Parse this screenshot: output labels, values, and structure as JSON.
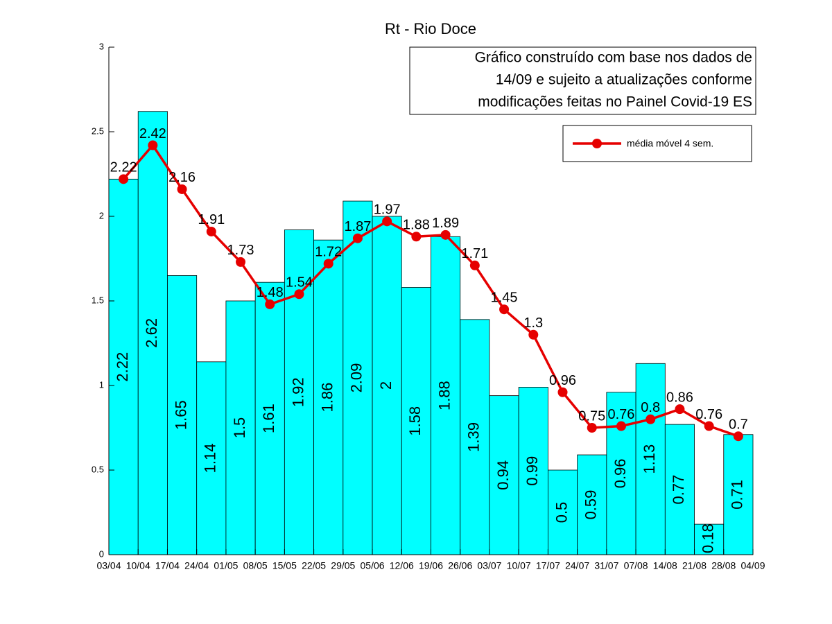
{
  "chart_data": {
    "type": "bar_line",
    "title": "Rt - Rio Doce",
    "annotation": [
      "Gráfico construído com base nos dados de",
      "14/09 e sujeito a atualizações conforme",
      "modificações feitas no Painel Covid-19 ES"
    ],
    "xlim": [
      0,
      22
    ],
    "xticks": [
      {
        "value": 0,
        "label": "03/04"
      },
      {
        "value": 1,
        "label": "10/04"
      },
      {
        "value": 2,
        "label": "17/04"
      },
      {
        "value": 3,
        "label": "24/04"
      },
      {
        "value": 4,
        "label": "01/05"
      },
      {
        "value": 5,
        "label": "08/05"
      },
      {
        "value": 6,
        "label": "15/05"
      },
      {
        "value": 7,
        "label": "22/05"
      },
      {
        "value": 8,
        "label": "29/05"
      },
      {
        "value": 9,
        "label": "05/06"
      },
      {
        "value": 10,
        "label": "12/06"
      },
      {
        "value": 11,
        "label": "19/06"
      },
      {
        "value": 12,
        "label": "26/06"
      },
      {
        "value": 13,
        "label": "03/07"
      },
      {
        "value": 14,
        "label": "10/07"
      },
      {
        "value": 15,
        "label": "17/07"
      },
      {
        "value": 16,
        "label": "24/07"
      },
      {
        "value": 17,
        "label": "31/07"
      },
      {
        "value": 18,
        "label": "07/08"
      },
      {
        "value": 19,
        "label": "14/08"
      },
      {
        "value": 20,
        "label": "21/08"
      },
      {
        "value": 21,
        "label": "28/08"
      },
      {
        "value": 22,
        "label": "04/09"
      }
    ],
    "ylim": [
      0,
      3
    ],
    "yticks": [
      0,
      0.5,
      1,
      1.5,
      2,
      2.5,
      3
    ],
    "legend_position": "upper right",
    "series": [
      {
        "type": "bar",
        "color": "#00ffff",
        "values": [
          2.22,
          2.62,
          1.65,
          1.14,
          1.5,
          1.61,
          1.92,
          1.86,
          2.09,
          2,
          1.58,
          1.88,
          1.39,
          0.94,
          0.99,
          0.5,
          0.59,
          0.96,
          1.13,
          0.77,
          0.18,
          0.71
        ]
      },
      {
        "type": "line",
        "name": "média móvel 4 sem.",
        "color": "#e60000",
        "values": [
          2.22,
          2.42,
          2.16,
          1.91,
          1.73,
          1.48,
          1.54,
          1.72,
          1.87,
          1.97,
          1.88,
          1.89,
          1.71,
          1.45,
          1.3,
          0.96,
          0.75,
          0.76,
          0.8,
          0.86,
          0.76,
          0.7
        ]
      }
    ]
  }
}
